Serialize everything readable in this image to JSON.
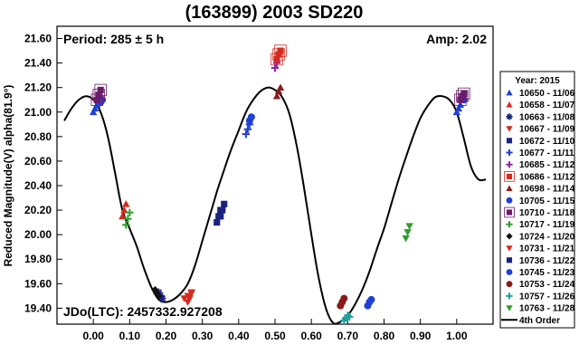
{
  "chart_data": {
    "type": "scatter",
    "title": "(163899) 2003 SD220",
    "xlabel": "",
    "ylabel": "Reduced Magnitude(V) alpha(81.9°)",
    "xlim": [
      -0.1,
      1.1
    ],
    "ylim": [
      21.7,
      19.27
    ],
    "y_inverted": true,
    "x_ticks": [
      "0.00",
      "0.10",
      "0.20",
      "0.30",
      "0.40",
      "0.50",
      "0.60",
      "0.70",
      "0.80",
      "0.90",
      "1.00"
    ],
    "x_tick_values": [
      0,
      0.1,
      0.2,
      0.3,
      0.4,
      0.5,
      0.6,
      0.7,
      0.8,
      0.9,
      1.0
    ],
    "y_ticks": [
      "19.40",
      "19.60",
      "19.80",
      "20.00",
      "20.20",
      "20.40",
      "20.60",
      "20.80",
      "21.00",
      "21.20",
      "21.40",
      "21.60"
    ],
    "y_tick_values": [
      19.4,
      19.6,
      19.8,
      20.0,
      20.2,
      20.4,
      20.6,
      20.8,
      21.0,
      21.2,
      21.4,
      21.6
    ],
    "annotations": {
      "period": "Period: 285 ± 5 h",
      "amp": "Amp: 2.02",
      "jdo": "JDo(LTC): 2457332.927208"
    },
    "legend": {
      "title": "Year: 2015",
      "position": "right",
      "entries": [
        {
          "label": "10650 - 11/06",
          "color": "#1f3fd6",
          "marker": "triangle-up"
        },
        {
          "label": "10658 - 11/07",
          "color": "#d62a1f",
          "marker": "triangle-up"
        },
        {
          "label": "10663 - 11/08",
          "color": "#1a237e",
          "marker": "asterisk"
        },
        {
          "label": "10667 - 11/09",
          "color": "#d62a1f",
          "marker": "triangle-down"
        },
        {
          "label": "10672 - 11/10",
          "color": "#1a237e",
          "marker": "square"
        },
        {
          "label": "10677 - 11/11",
          "color": "#1f3fd6",
          "marker": "plus"
        },
        {
          "label": "10685 - 11/12",
          "color": "#8e24aa",
          "marker": "plus"
        },
        {
          "label": "10686 - 11/12",
          "color": "#d62a1f",
          "marker": "square-boxed"
        },
        {
          "label": "10698 - 11/14",
          "color": "#8b1a1a",
          "marker": "triangle-up"
        },
        {
          "label": "10705 - 11/15",
          "color": "#1f3fd6",
          "marker": "circle"
        },
        {
          "label": "10710 - 11/18",
          "color": "#6a1b6a",
          "marker": "square-boxed"
        },
        {
          "label": "10717 - 11/19",
          "color": "#2e9e2e",
          "marker": "plus"
        },
        {
          "label": "10724 - 11/20",
          "color": "#111111",
          "marker": "diamond"
        },
        {
          "label": "10731 - 11/21",
          "color": "#d62a1f",
          "marker": "triangle-down"
        },
        {
          "label": "10736 - 11/22",
          "color": "#1a237e",
          "marker": "square"
        },
        {
          "label": "10745 - 11/23",
          "color": "#1f3fd6",
          "marker": "circle"
        },
        {
          "label": "10753 - 11/24",
          "color": "#8b1a1a",
          "marker": "circle"
        },
        {
          "label": "10757 - 11/26",
          "color": "#20a0a0",
          "marker": "plus"
        },
        {
          "label": "10763 - 11/28",
          "color": "#2e9e2e",
          "marker": "triangle-down"
        },
        {
          "label": "4th Order",
          "color": "#000000",
          "marker": "line"
        }
      ]
    },
    "fit": {
      "label": "4th Order",
      "x": [
        -0.08,
        -0.06,
        -0.04,
        -0.02,
        0.0,
        0.02,
        0.04,
        0.06,
        0.08,
        0.1,
        0.12,
        0.14,
        0.16,
        0.18,
        0.2,
        0.22,
        0.24,
        0.26,
        0.28,
        0.3,
        0.32,
        0.34,
        0.36,
        0.38,
        0.4,
        0.42,
        0.44,
        0.46,
        0.48,
        0.5,
        0.52,
        0.54,
        0.56,
        0.58,
        0.6,
        0.62,
        0.64,
        0.66,
        0.68,
        0.7,
        0.72,
        0.74,
        0.76,
        0.78,
        0.8,
        0.82,
        0.84,
        0.86,
        0.88,
        0.9,
        0.92,
        0.94,
        0.96,
        0.98,
        1.0,
        1.02,
        1.04,
        1.06,
        1.08
      ],
      "y": [
        20.93,
        21.03,
        21.1,
        21.13,
        21.1,
        21.0,
        20.8,
        20.5,
        20.2,
        20.05,
        19.9,
        19.72,
        19.57,
        19.47,
        19.45,
        19.47,
        19.52,
        19.6,
        19.75,
        19.95,
        20.15,
        20.35,
        20.53,
        20.7,
        20.85,
        21.0,
        21.1,
        21.17,
        21.2,
        21.18,
        21.12,
        20.98,
        20.72,
        20.38,
        20.0,
        19.65,
        19.4,
        19.28,
        19.29,
        19.34,
        19.43,
        19.55,
        19.7,
        19.88,
        20.05,
        20.25,
        20.45,
        20.63,
        20.8,
        20.95,
        21.05,
        21.12,
        21.13,
        21.1,
        21.0,
        20.78,
        20.55,
        20.45,
        20.45
      ]
    },
    "series": [
      {
        "name": "10650 - 11/06",
        "marker": "triangle-up",
        "color": "#1f3fd6",
        "x": [
          0.0,
          0.005,
          0.01,
          1.0,
          1.005,
          1.01
        ],
        "y": [
          21.0,
          21.03,
          21.06,
          21.0,
          21.03,
          21.06
        ]
      },
      {
        "name": "10658 - 11/07",
        "marker": "triangle-up",
        "color": "#d62a1f",
        "x": [
          0.08,
          0.085,
          0.09
        ],
        "y": [
          20.15,
          20.2,
          20.25
        ]
      },
      {
        "name": "10663 - 11/08",
        "marker": "asterisk",
        "color": "#1a237e",
        "x": [
          0.18,
          0.185,
          0.19
        ],
        "y": [
          19.53,
          19.5,
          19.48
        ]
      },
      {
        "name": "10667 - 11/09",
        "marker": "triangle-down",
        "color": "#d62a1f",
        "x": [
          0.25,
          0.26,
          0.27
        ],
        "y": [
          19.48,
          19.5,
          19.53
        ]
      },
      {
        "name": "10672 - 11/10",
        "marker": "square",
        "color": "#1a237e",
        "x": [
          0.34,
          0.345,
          0.35
        ],
        "y": [
          20.1,
          20.15,
          20.2
        ]
      },
      {
        "name": "10677 - 11/11",
        "marker": "plus",
        "color": "#1f3fd6",
        "x": [
          0.42,
          0.425,
          0.43
        ],
        "y": [
          20.82,
          20.86,
          20.9
        ]
      },
      {
        "name": "10685 - 11/12",
        "marker": "plus",
        "color": "#8e24aa",
        "x": [
          0.5,
          0.505
        ],
        "y": [
          21.36,
          21.4
        ]
      },
      {
        "name": "10686 - 11/12",
        "marker": "square-boxed",
        "color": "#d62a1f",
        "x": [
          0.505,
          0.51,
          0.515
        ],
        "y": [
          21.43,
          21.47,
          21.5
        ]
      },
      {
        "name": "10698 - 11/14",
        "marker": "triangle-up",
        "color": "#8b1a1a",
        "x": [
          0.505,
          0.51,
          0.515
        ],
        "y": [
          21.13,
          21.17,
          21.2
        ]
      },
      {
        "name": "10705 - 11/15",
        "marker": "circle",
        "color": "#1f3fd6",
        "x": [
          0.02,
          0.025,
          1.02
        ],
        "y": [
          21.08,
          21.1,
          21.1
        ]
      },
      {
        "name": "10710 - 11/18",
        "marker": "square-boxed",
        "color": "#6a1b6a",
        "x": [
          0.01,
          0.015,
          0.02,
          1.01,
          1.015,
          1.02
        ],
        "y": [
          21.1,
          21.14,
          21.18,
          21.1,
          21.13,
          21.15
        ]
      },
      {
        "name": "10717 - 11/19",
        "marker": "plus",
        "color": "#2e9e2e",
        "x": [
          0.09,
          0.095,
          0.1
        ],
        "y": [
          20.08,
          20.13,
          20.18
        ]
      },
      {
        "name": "10724 - 11/20",
        "marker": "diamond",
        "color": "#111111",
        "x": [
          0.17,
          0.175,
          0.18
        ],
        "y": [
          19.55,
          19.52,
          19.5
        ]
      },
      {
        "name": "10731 - 11/21",
        "marker": "triangle-down",
        "color": "#d62a1f",
        "x": [
          0.26,
          0.265,
          0.27
        ],
        "y": [
          19.45,
          19.48,
          19.52
        ]
      },
      {
        "name": "10736 - 11/22",
        "marker": "square",
        "color": "#1a237e",
        "x": [
          0.35,
          0.355,
          0.36
        ],
        "y": [
          20.15,
          20.2,
          20.25
        ]
      },
      {
        "name": "10745 - 11/23",
        "marker": "circle",
        "color": "#1f3fd6",
        "x": [
          0.755,
          0.76,
          0.765,
          0.43,
          0.435
        ],
        "y": [
          19.42,
          19.45,
          19.47,
          20.93,
          20.96
        ]
      },
      {
        "name": "10753 - 11/24",
        "marker": "circle",
        "color": "#8b1a1a",
        "x": [
          0.68,
          0.685,
          0.69
        ],
        "y": [
          19.42,
          19.45,
          19.48
        ]
      },
      {
        "name": "10757 - 11/26",
        "marker": "plus",
        "color": "#20a0a0",
        "x": [
          0.69,
          0.695,
          0.7,
          0.705
        ],
        "y": [
          19.3,
          19.32,
          19.34,
          19.33
        ]
      },
      {
        "name": "10763 - 11/28",
        "marker": "triangle-down",
        "color": "#2e9e2e",
        "x": [
          0.86,
          0.865,
          0.87
        ],
        "y": [
          19.97,
          20.02,
          20.07
        ]
      }
    ]
  }
}
